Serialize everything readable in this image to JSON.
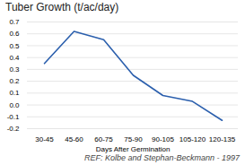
{
  "chart_data": {
    "type": "line",
    "title": "Tuber Growth (t/ac/day)",
    "xlabel": "Days After Germination",
    "categories": [
      "30-45",
      "45-60",
      "60-75",
      "75-90",
      "90-105",
      "105-120",
      "120-135"
    ],
    "values": [
      0.35,
      0.62,
      0.55,
      0.25,
      0.08,
      0.03,
      -0.13
    ],
    "color": "#2b5fad",
    "ylim": [
      -0.2,
      0.7
    ],
    "yticks": [
      -0.2,
      -0.1,
      {
        "value": 0,
        "label": "0.0"
      },
      0.1,
      0.2,
      0.3,
      0.4,
      0.5,
      0.6,
      0.7
    ],
    "grid": true,
    "annotations": [
      "REF: Kolbe and Stephan-Beckmann - 1997"
    ]
  }
}
